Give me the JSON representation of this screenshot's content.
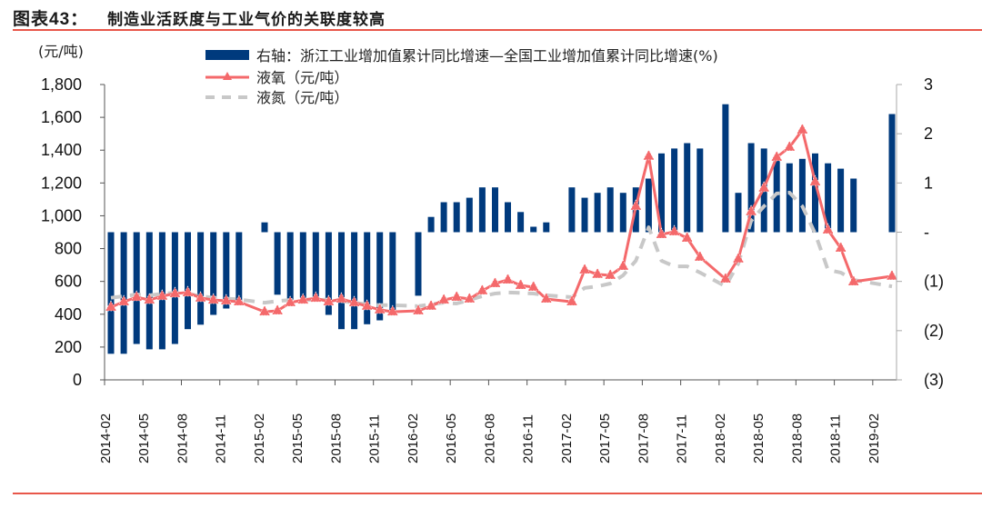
{
  "header": {
    "figure_label": "图表43：",
    "title": "制造业活跃度与工业气价的关联度较高"
  },
  "chart_data": {
    "type": "bar+line",
    "title": "制造业活跃度与工业气价的关联度较高",
    "left_axis": {
      "label": "(元/吨)",
      "range": [
        0,
        1800
      ],
      "ticks": [
        "0",
        "200",
        "400",
        "600",
        "800",
        "1,000",
        "1,200",
        "1,400",
        "1,600",
        "1,800"
      ],
      "tick_values": [
        0,
        200,
        400,
        600,
        800,
        1000,
        1200,
        1400,
        1600,
        1800
      ]
    },
    "right_axis": {
      "label": "%",
      "range": [
        -3,
        3
      ],
      "ticks": [
        "(3)",
        "(2)",
        "(1)",
        "-",
        "1",
        "2",
        "3"
      ],
      "tick_values": [
        -3,
        -2,
        -1,
        0,
        1,
        2,
        3
      ]
    },
    "x_tick_labels": [
      "2014-02",
      "2014-05",
      "2014-08",
      "2014-11",
      "2015-02",
      "2015-05",
      "2015-08",
      "2015-11",
      "2016-02",
      "2016-05",
      "2016-08",
      "2016-11",
      "2017-02",
      "2017-05",
      "2017-08",
      "2017-11",
      "2018-02",
      "2018-05",
      "2018-08",
      "2018-11",
      "2019-02"
    ],
    "legend_position": "top",
    "categories": [
      "2014-02",
      "2014-03",
      "2014-04",
      "2014-05",
      "2014-06",
      "2014-07",
      "2014-08",
      "2014-09",
      "2014-10",
      "2014-11",
      "2014-12",
      "2015-01",
      "2015-02",
      "2015-03",
      "2015-04",
      "2015-05",
      "2015-06",
      "2015-07",
      "2015-08",
      "2015-09",
      "2015-10",
      "2015-11",
      "2015-12",
      "2016-01",
      "2016-02",
      "2016-03",
      "2016-04",
      "2016-05",
      "2016-06",
      "2016-07",
      "2016-08",
      "2016-09",
      "2016-10",
      "2016-11",
      "2016-12",
      "2017-01",
      "2017-02",
      "2017-03",
      "2017-04",
      "2017-05",
      "2017-06",
      "2017-07",
      "2017-08",
      "2017-09",
      "2017-10",
      "2017-11",
      "2017-12",
      "2018-01",
      "2018-02",
      "2018-03",
      "2018-04",
      "2018-05",
      "2018-06",
      "2018-07",
      "2018-08",
      "2018-09",
      "2018-10",
      "2018-11",
      "2018-12",
      "2019-01",
      "2019-02",
      "2019-03"
    ],
    "series": [
      {
        "name": "右轴：浙江工业增加值累计同比增速—全国工业增加值累计同比增速(%)",
        "type": "bar",
        "axis": "right",
        "color": "#003a7d",
        "values": [
          -2.47,
          -2.47,
          -2.27,
          -2.38,
          -2.38,
          -2.27,
          -1.97,
          -1.88,
          -1.68,
          -1.55,
          -1.45,
          null,
          0.2,
          -1.27,
          -1.37,
          -1.33,
          -1.33,
          -1.68,
          -1.97,
          -1.97,
          -1.87,
          -1.79,
          -1.64,
          null,
          -1.29,
          0.31,
          0.61,
          0.61,
          0.7,
          0.91,
          0.91,
          0.61,
          0.41,
          0.11,
          0.2,
          null,
          0.91,
          0.7,
          0.8,
          0.91,
          0.8,
          0.91,
          1.09,
          1.6,
          1.7,
          1.81,
          1.7,
          null,
          2.6,
          0.8,
          1.81,
          1.7,
          1.49,
          1.4,
          1.49,
          1.6,
          1.4,
          1.29,
          1.09,
          null,
          null,
          2.4
        ]
      },
      {
        "name": "液氧（元/吨）",
        "type": "line",
        "axis": "left",
        "color": "#f4696b",
        "marker": "triangle",
        "values": [
          443,
          476,
          504,
          487,
          510,
          526,
          532,
          499,
          487,
          482,
          476,
          null,
          415,
          421,
          471,
          487,
          498,
          476,
          493,
          471,
          449,
          427,
          415,
          null,
          421,
          449,
          487,
          504,
          493,
          543,
          587,
          609,
          576,
          565,
          493,
          null,
          476,
          670,
          643,
          637,
          692,
          1058,
          1363,
          886,
          903,
          864,
          748,
          null,
          615,
          737,
          1025,
          1169,
          1357,
          1418,
          1523,
          1207,
          914,
          803,
          598,
          null,
          null,
          632
        ]
      },
      {
        "name": "液氮（元/吨）",
        "type": "line",
        "axis": "left",
        "color": "#c8c8c8",
        "dash": true,
        "values": [
          500,
          510,
          520,
          515,
          525,
          530,
          525,
          510,
          500,
          495,
          490,
          null,
          470,
          480,
          487,
          490,
          485,
          490,
          480,
          470,
          460,
          455,
          455,
          null,
          449,
          460,
          471,
          465,
          487,
          510,
          526,
          532,
          530,
          526,
          515,
          null,
          504,
          560,
          570,
          587,
          637,
          726,
          930,
          726,
          692,
          692,
          654,
          null,
          570,
          709,
          969,
          1058,
          1136,
          1141,
          1058,
          892,
          670,
          654,
          609,
          null,
          null,
          570
        ]
      }
    ]
  }
}
